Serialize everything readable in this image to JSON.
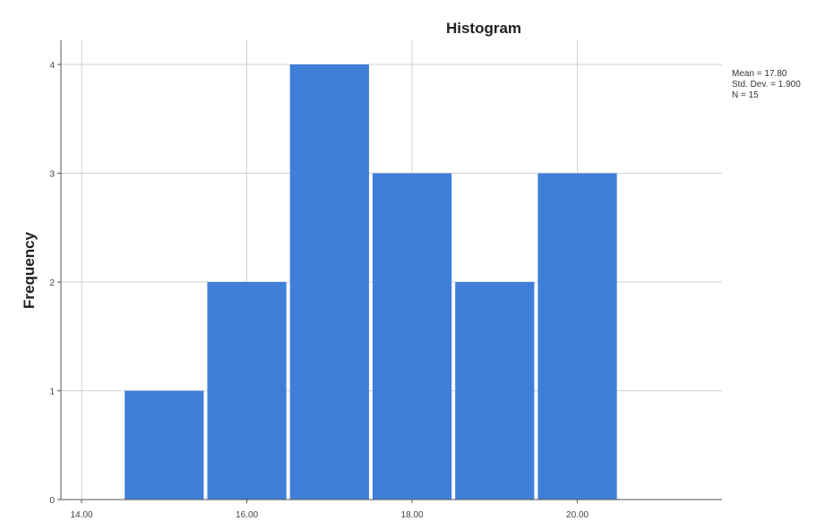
{
  "chart_data": {
    "type": "bar",
    "title": "Histogram",
    "xlabel": "",
    "ylabel": "Frequency",
    "ylim": [
      0,
      4
    ],
    "xlim": [
      13.75,
      21.75
    ],
    "bin_edges": [
      14.5,
      15.5,
      16.5,
      17.5,
      18.5,
      19.5,
      20.5
    ],
    "values": [
      1,
      2,
      4,
      3,
      2,
      3
    ],
    "x_ticks": [
      14,
      16,
      18,
      20
    ],
    "x_tick_labels": [
      "14.00",
      "16.00",
      "18.00",
      "20.00"
    ],
    "y_ticks": [
      0,
      1,
      2,
      3,
      4
    ],
    "y_tick_labels": [
      "0",
      "1",
      "2",
      "3",
      "4"
    ],
    "grid": true,
    "bar_color": "#3f7fd9",
    "stats": {
      "mean": "Mean = 17.80",
      "std_dev": "Std. Dev. = 1.900",
      "n": "N = 15"
    }
  }
}
